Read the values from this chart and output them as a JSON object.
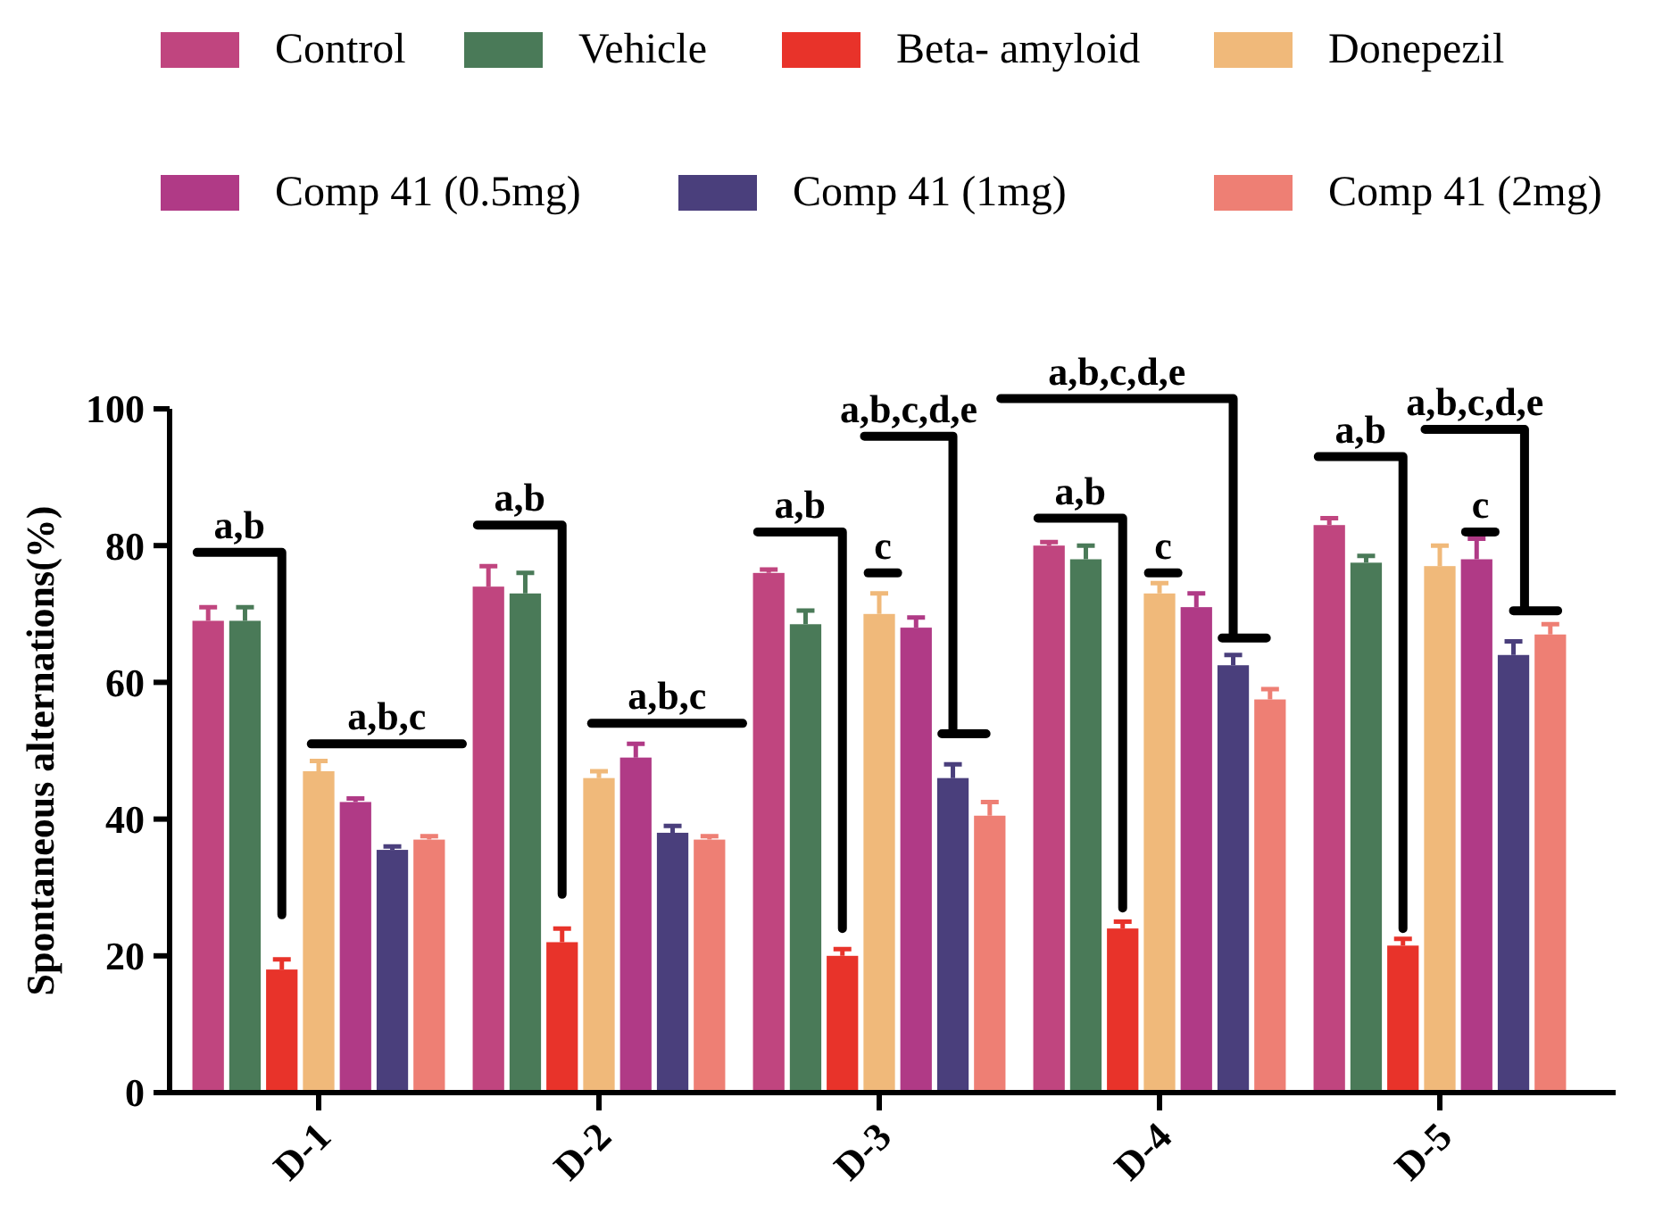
{
  "chart_data": {
    "type": "bar",
    "ylabel": "Spontaneous alternations(%)",
    "categories": [
      "D-1",
      "D-2",
      "D-3",
      "D-4",
      "D-5"
    ],
    "ylim": [
      0,
      100
    ],
    "yticks": [
      0,
      20,
      40,
      60,
      80,
      100
    ],
    "grid": false,
    "legend": "top",
    "series": [
      {
        "name": "Control",
        "color": "#c0457f",
        "values": [
          69,
          74,
          76,
          80,
          83
        ],
        "errors": [
          2,
          3,
          0.5,
          0.5,
          1
        ]
      },
      {
        "name": "Vehicle",
        "color": "#4a7a58",
        "values": [
          69,
          73,
          68.5,
          78,
          77.5
        ],
        "errors": [
          2,
          3,
          2,
          2,
          1
        ]
      },
      {
        "name": "Beta- amyloid",
        "color": "#e8332a",
        "values": [
          18,
          22,
          20,
          24,
          21.5
        ],
        "errors": [
          1.5,
          2,
          1,
          1,
          1
        ]
      },
      {
        "name": "Donepezil",
        "color": "#f0b97a",
        "values": [
          47,
          46,
          70,
          73,
          77
        ],
        "errors": [
          1.5,
          1,
          3,
          1.5,
          3
        ]
      },
      {
        "name": "Comp 41 (0.5mg)",
        "color": "#b03a86",
        "values": [
          42.5,
          49,
          68,
          71,
          78
        ],
        "errors": [
          0.5,
          2,
          1.5,
          2,
          3
        ]
      },
      {
        "name": "Comp 41 (1mg)",
        "color": "#4a3f7c",
        "values": [
          35.5,
          38,
          46,
          62.5,
          64
        ],
        "errors": [
          0.5,
          1,
          2,
          1.5,
          2
        ]
      },
      {
        "name": "Comp 41 (2mg)",
        "color": "#ee7f74",
        "values": [
          37,
          37,
          40.5,
          57.5,
          67
        ],
        "errors": [
          0.5,
          0.5,
          2,
          1.5,
          1.5
        ]
      }
    ],
    "annotations": [
      "a,b",
      "a,b,c",
      "a,b",
      "a,b,c",
      "a,b",
      "c",
      "a,b,c,d,e",
      "a,b",
      "c",
      "a,b,c,d,e",
      "a,b",
      "c",
      "a,b,c,d,e"
    ]
  }
}
